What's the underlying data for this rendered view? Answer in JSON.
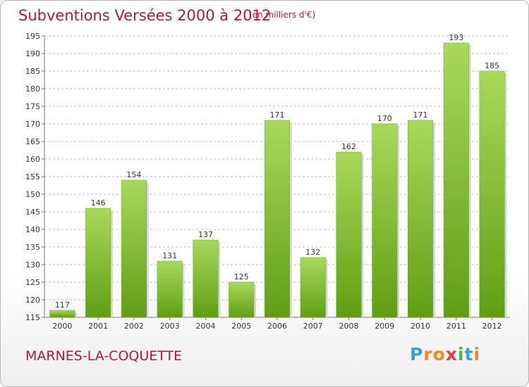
{
  "header": {
    "title": "Subventions Versées 2000 à 2012",
    "unit_note": "(en milliers d'€)"
  },
  "footer": {
    "commune": "MARNES-LA-COQUETTE",
    "logo_text": "Proxiti",
    "logo_letters": [
      "P",
      "r",
      "o",
      "x",
      "i",
      "t",
      "i"
    ],
    "logo_colors": [
      "#3aa0d8",
      "#f08a1c",
      "#f08a1c",
      "#e63946",
      "#4fb748",
      "#3aa0d8",
      "#f08a1c"
    ]
  },
  "colors": {
    "title": "#b1183f",
    "bar_light": "#a8d95a",
    "bar_dark": "#5f9e14",
    "grid": "#bbbbbb"
  },
  "chart_data": {
    "type": "bar",
    "title": "Subventions Versées 2000 à 2012",
    "subtitle": "(en milliers d'€)",
    "xlabel": "",
    "ylabel": "",
    "categories": [
      "2000",
      "2001",
      "2002",
      "2003",
      "2004",
      "2005",
      "2006",
      "2007",
      "2008",
      "2009",
      "2010",
      "2011",
      "2012"
    ],
    "values": [
      117,
      146,
      154,
      131,
      137,
      125,
      171,
      132,
      162,
      170,
      171,
      193,
      185
    ],
    "ylim": [
      115,
      195
    ],
    "yticks": [
      115,
      120,
      125,
      130,
      135,
      140,
      145,
      150,
      155,
      160,
      165,
      170,
      175,
      180,
      185,
      190,
      195
    ],
    "grid": true,
    "legend": "none"
  }
}
